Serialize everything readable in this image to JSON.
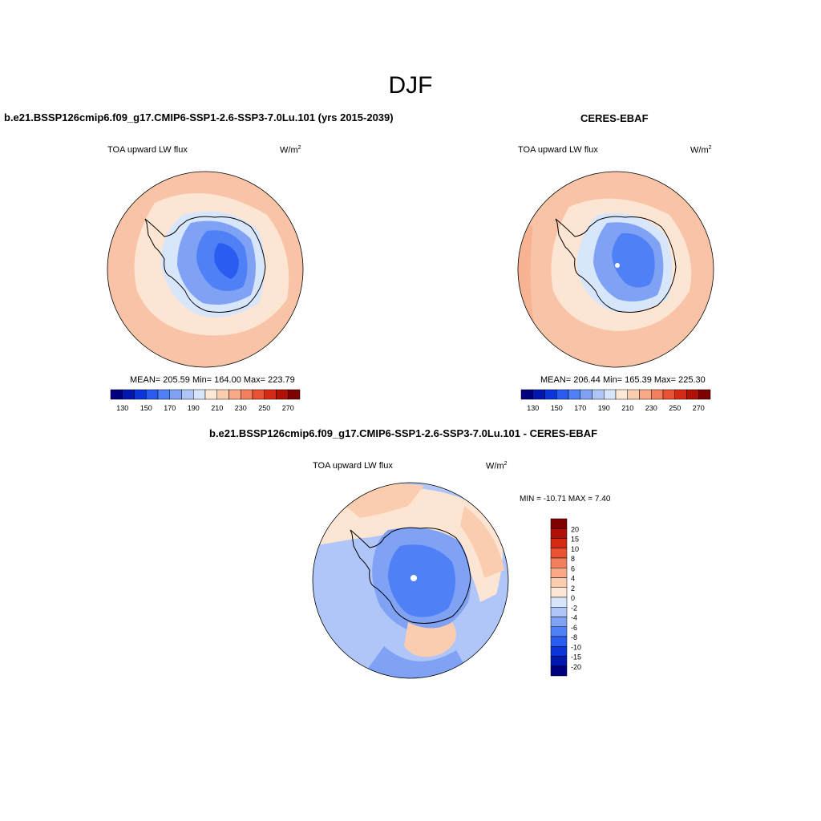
{
  "season": "DJF",
  "panels": {
    "model": {
      "title": "b.e21.BSSP126cmip6.f09_g17.CMIP6-SSP1-2.6-SSP3-7.0Lu.101 (yrs 2015-2039)",
      "variable": "TOA upward LW flux",
      "units_base": "W/m",
      "units_exp": "2",
      "stats": "MEAN= 205.59  Min= 164.00  Max= 223.79"
    },
    "obs": {
      "title": "CERES-EBAF",
      "variable": "TOA upward LW flux",
      "units_base": "W/m",
      "units_exp": "2",
      "stats": "MEAN= 206.44  Min= 165.39  Max= 225.30"
    },
    "diff": {
      "title": "b.e21.BSSP126cmip6.f09_g17.CMIP6-SSP1-2.6-SSP3-7.0Lu.101 - CERES-EBAF",
      "variable": "TOA upward LW flux",
      "units_base": "W/m",
      "units_exp": "2",
      "minmax": "MIN = -10.71 MAX =   7.40"
    }
  },
  "colorbar_abs": {
    "colors": [
      "#00007f",
      "#0018b0",
      "#0a35d8",
      "#2a5cf0",
      "#5080f5",
      "#7fa2f5",
      "#b0c6f8",
      "#d8e6fb",
      "#fde8d6",
      "#fbcdb0",
      "#f7a988",
      "#f2805e",
      "#ea5234",
      "#d62a14",
      "#b01208",
      "#7f0000"
    ],
    "labels": [
      "130",
      "150",
      "170",
      "190",
      "210",
      "230",
      "250",
      "270"
    ]
  },
  "colorbar_diff": {
    "colors": [
      "#00007f",
      "#0018b0",
      "#0a35d8",
      "#2a5cf0",
      "#5080f5",
      "#7fa2f5",
      "#b0c6f8",
      "#d8e6fb",
      "#fde8d6",
      "#fbcdb0",
      "#f7a988",
      "#f2805e",
      "#ea5234",
      "#d62a14",
      "#b01208",
      "#7f0000"
    ],
    "labels": [
      "20",
      "15",
      "10",
      "8",
      "6",
      "4",
      "2",
      "0",
      "-2",
      "-4",
      "-6",
      "-8",
      "-10",
      "-15",
      "-20"
    ]
  }
}
